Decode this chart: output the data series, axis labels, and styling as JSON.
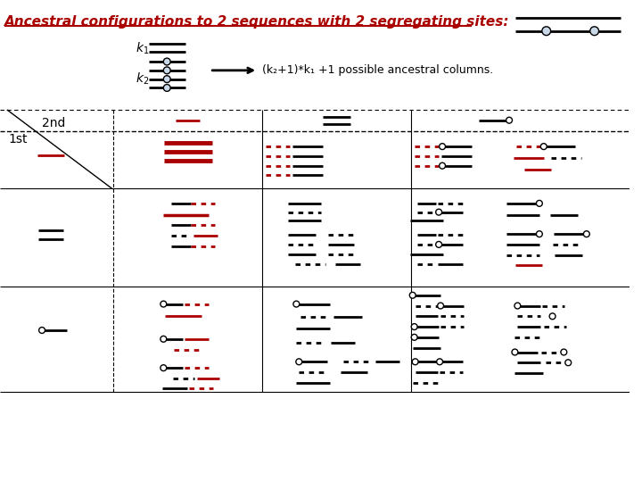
{
  "title": "Ancestral configurations to 2 sequences with 2 segregating sites:",
  "title_color": "#cc0000",
  "annotation": "(k₂+1)*k₁ +1 possible ancestral columns.",
  "bg_color": "#ffffff",
  "red": "#aa0000",
  "black": "#000000"
}
